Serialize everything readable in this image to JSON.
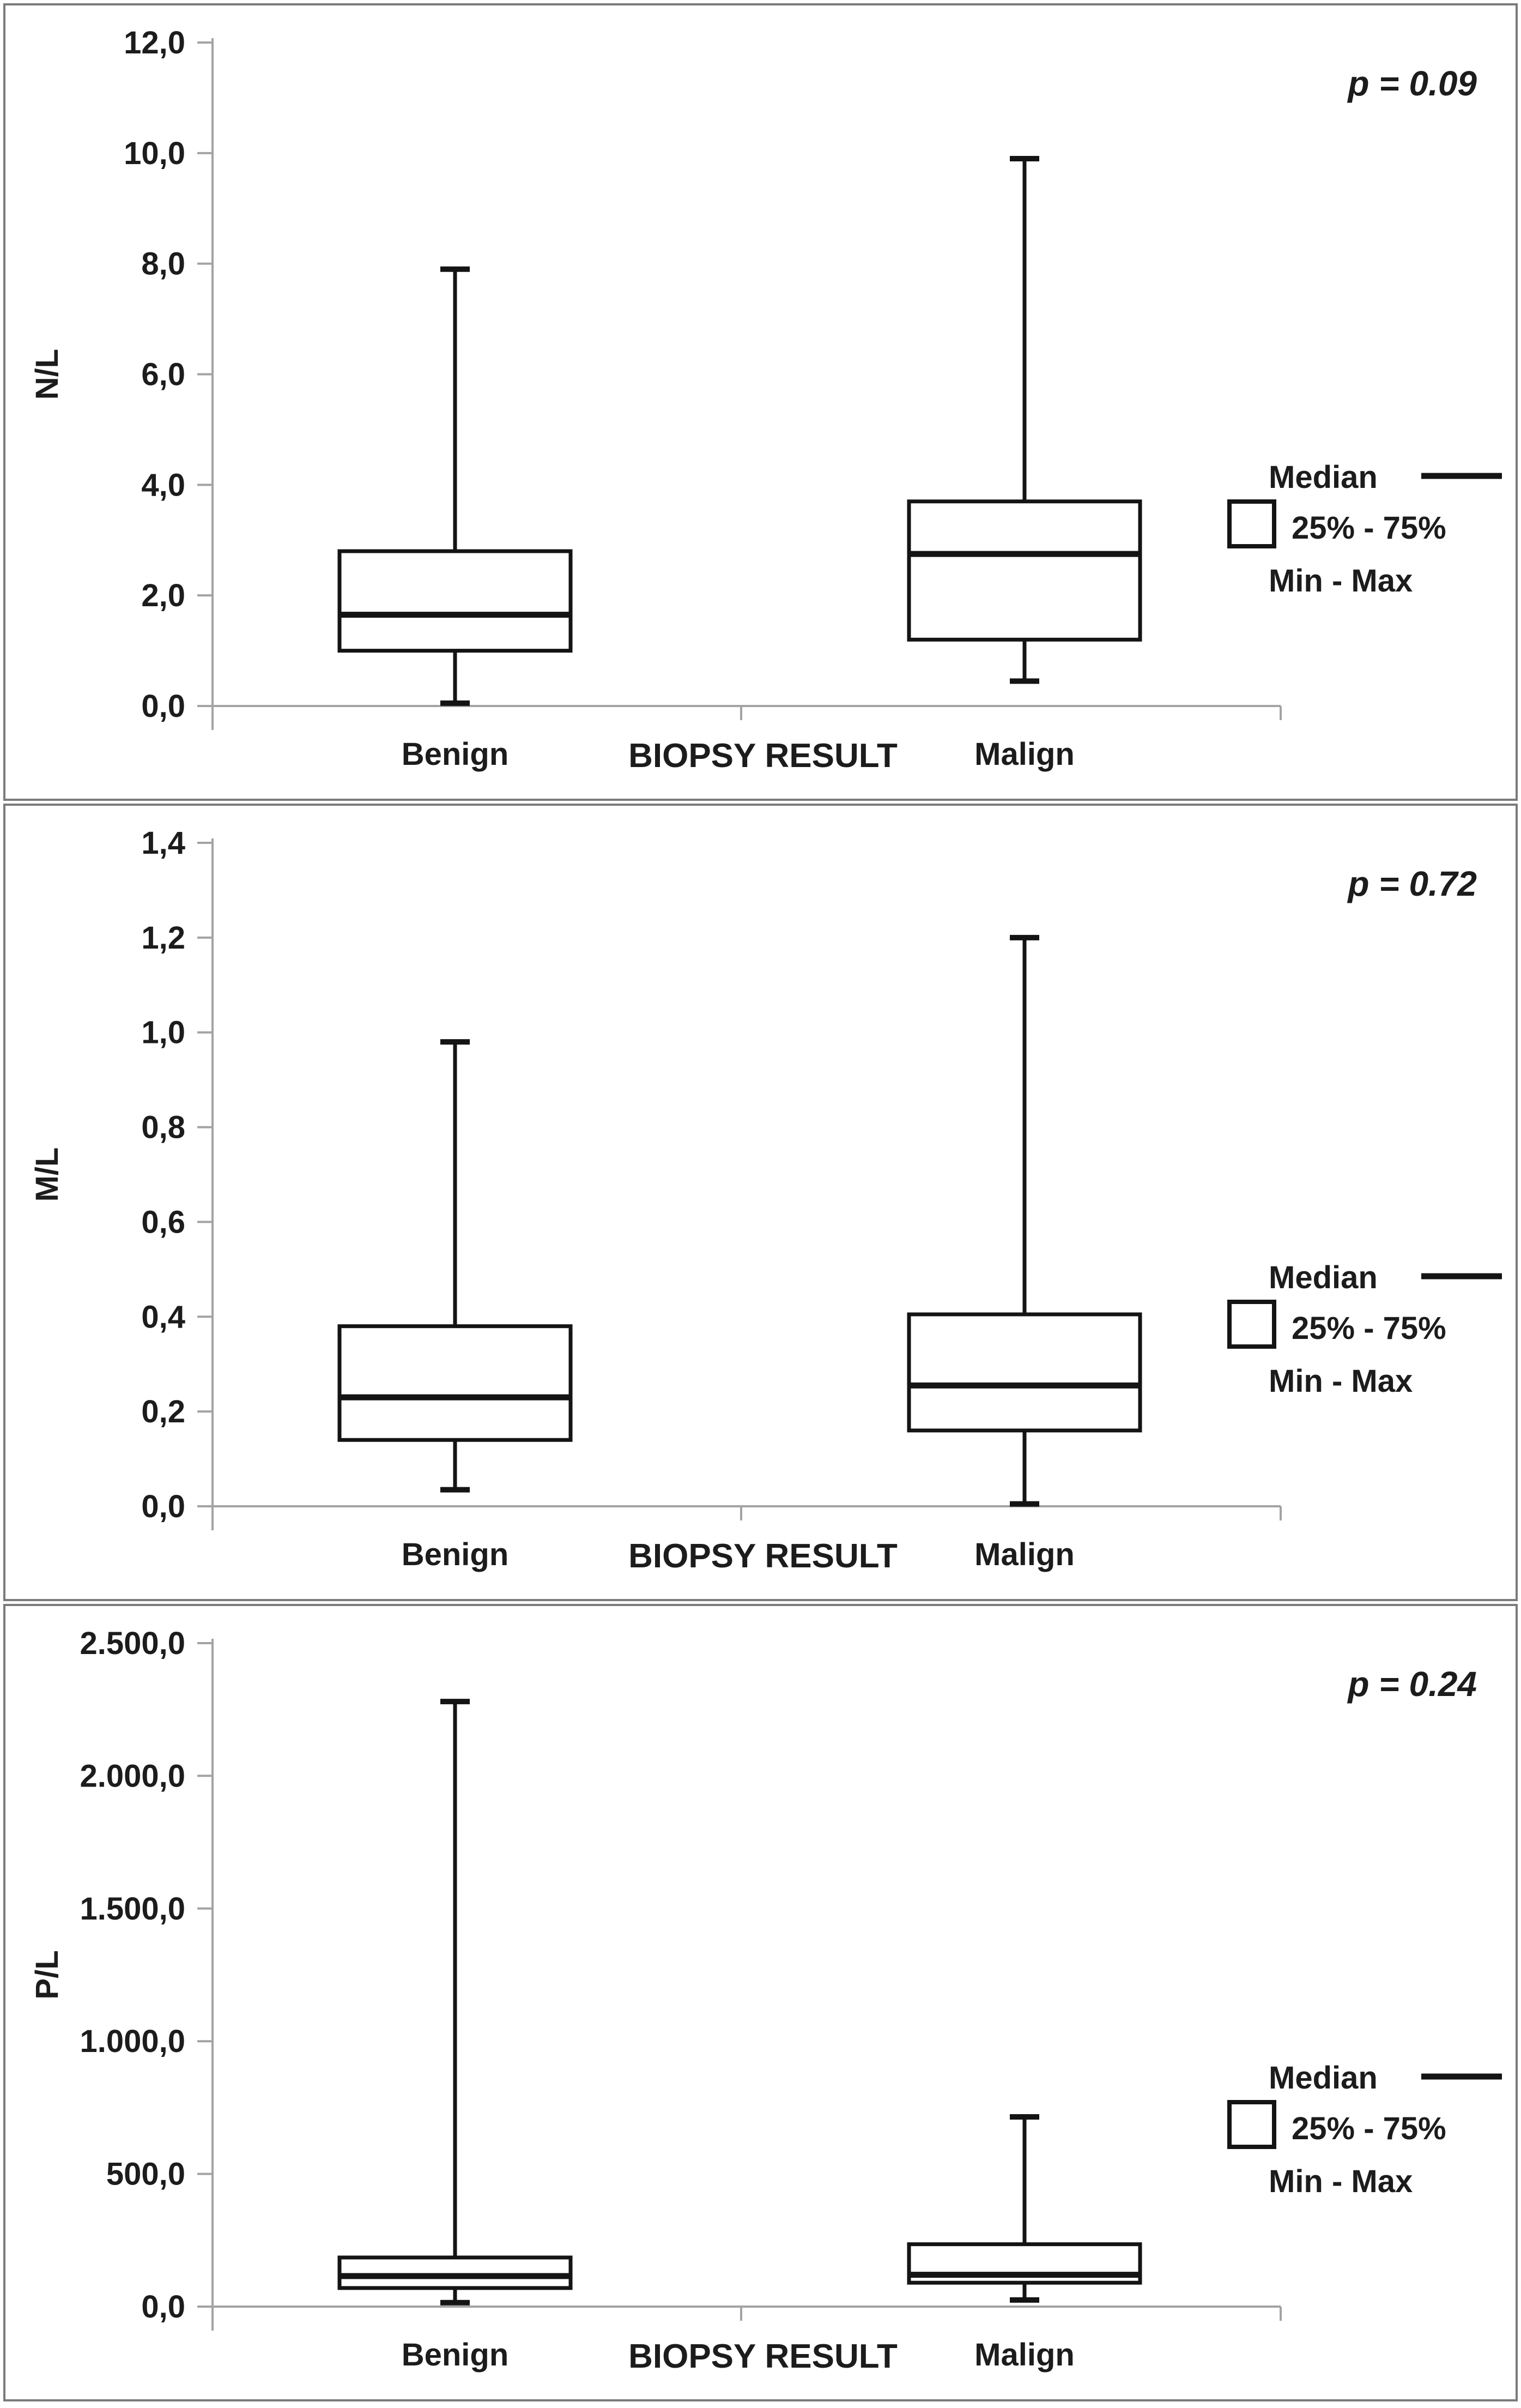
{
  "figure": {
    "background": "#ffffff",
    "colors": {
      "box_stroke": "#141414",
      "axis": "#a3a3a3",
      "text": "#1c1c1c",
      "panel_border": "#7b7b7b"
    }
  },
  "chart_data": [
    {
      "type": "box",
      "ylabel": "N/L",
      "xlabel": "BIOPSY RESULT",
      "p_annotation": "p = 0.09",
      "ylim": [
        0,
        12
      ],
      "grid": false,
      "legend_position": "right",
      "yticks": [
        {
          "value": 0,
          "label": "0,0"
        },
        {
          "value": 2,
          "label": "2,0"
        },
        {
          "value": 4,
          "label": "4,0"
        },
        {
          "value": 6,
          "label": "6,0"
        },
        {
          "value": 8,
          "label": "8,0"
        },
        {
          "value": 10,
          "label": "10,0"
        },
        {
          "value": 12,
          "label": "12,0"
        }
      ],
      "categories": [
        "Benign",
        "Malign"
      ],
      "series": [
        {
          "name": "Benign",
          "min": 0.05,
          "q1": 1.0,
          "median": 1.65,
          "q3": 2.8,
          "max": 7.9
        },
        {
          "name": "Malign",
          "min": 0.45,
          "q1": 1.2,
          "median": 2.75,
          "q3": 3.7,
          "max": 9.9
        }
      ],
      "legend": {
        "median_label": "Median",
        "iqr_label": "25% - 75%",
        "minmax_label": "Min - Max"
      }
    },
    {
      "type": "box",
      "ylabel": "M/L",
      "xlabel": "BIOPSY RESULT",
      "p_annotation": "p = 0.72",
      "ylim": [
        0,
        1.4
      ],
      "grid": false,
      "legend_position": "right",
      "yticks": [
        {
          "value": 0,
          "label": "0,0"
        },
        {
          "value": 0.2,
          "label": "0,2"
        },
        {
          "value": 0.4,
          "label": "0,4"
        },
        {
          "value": 0.6,
          "label": "0,6"
        },
        {
          "value": 0.8,
          "label": "0,8"
        },
        {
          "value": 1.0,
          "label": "1,0"
        },
        {
          "value": 1.2,
          "label": "1,2"
        },
        {
          "value": 1.4,
          "label": "1,4"
        }
      ],
      "categories": [
        "Benign",
        "Malign"
      ],
      "series": [
        {
          "name": "Benign",
          "min": 0.035,
          "q1": 0.14,
          "median": 0.23,
          "q3": 0.38,
          "max": 0.98
        },
        {
          "name": "Malign",
          "min": 0.005,
          "q1": 0.16,
          "median": 0.255,
          "q3": 0.405,
          "max": 1.2
        }
      ],
      "legend": {
        "median_label": "Median",
        "iqr_label": "25% - 75%",
        "minmax_label": "Min - Max"
      }
    },
    {
      "type": "box",
      "ylabel": "P/L",
      "xlabel": "BIOPSY RESULT",
      "p_annotation": "p = 0.24",
      "ylim": [
        0,
        2500
      ],
      "grid": false,
      "legend_position": "right",
      "yticks": [
        {
          "value": 0,
          "label": "0,0"
        },
        {
          "value": 500,
          "label": "500,0"
        },
        {
          "value": 1000,
          "label": "1.000,0"
        },
        {
          "value": 1500,
          "label": "1.500,0"
        },
        {
          "value": 2000,
          "label": "2.000,0"
        },
        {
          "value": 2500,
          "label": "2.500,0"
        }
      ],
      "categories": [
        "Benign",
        "Malign"
      ],
      "series": [
        {
          "name": "Benign",
          "min": 15,
          "q1": 70,
          "median": 115,
          "q3": 185,
          "max": 2280
        },
        {
          "name": "Malign",
          "min": 25,
          "q1": 90,
          "median": 120,
          "q3": 235,
          "max": 715
        }
      ],
      "legend": {
        "median_label": "Median",
        "iqr_label": "25% - 75%",
        "minmax_label": "Min - Max"
      }
    }
  ]
}
